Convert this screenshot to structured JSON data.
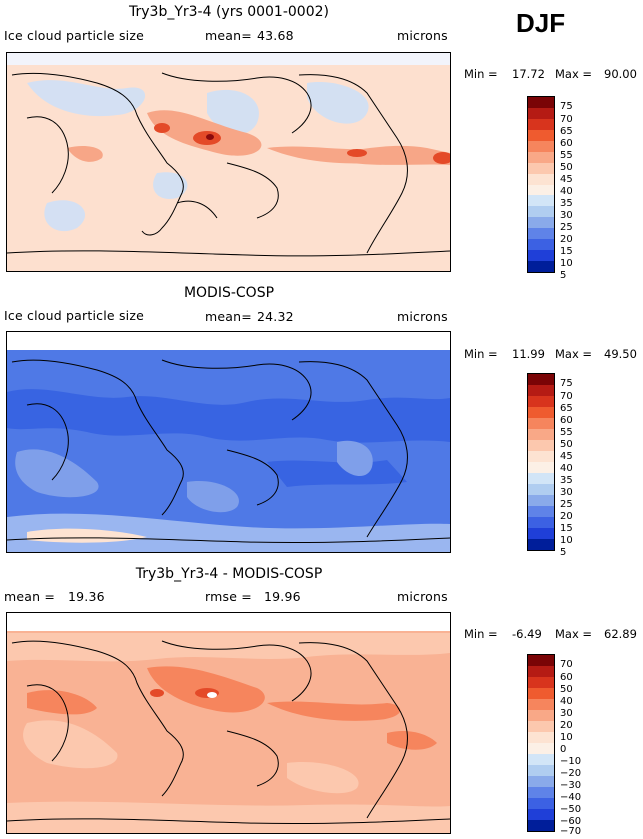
{
  "season": "DJF",
  "panels": [
    {
      "title": "Try3b_Yr3-4 (yrs 0001-0002)",
      "left_label": "Ice cloud particle size",
      "mean_label": "mean=",
      "mean_value": "43.68",
      "units": "microns",
      "min_label": "Min =",
      "min_value": "17.72",
      "max_label": "Max =",
      "max_value": "90.00",
      "colorbar_levels": [
        "75",
        "70",
        "65",
        "60",
        "55",
        "50",
        "45",
        "40",
        "35",
        "30",
        "25",
        "20",
        "15",
        "10",
        "5"
      ],
      "colorbar_colors": [
        "#7a0406",
        "#b51b14",
        "#d8341d",
        "#ef5b2f",
        "#f6855d",
        "#f9a887",
        "#fcc8ae",
        "#fde3d2",
        "#fcf0e6",
        "#d2e5f7",
        "#b0cdf0",
        "#8aaaea",
        "#5f83e8",
        "#3c61e3",
        "#1f3fd8",
        "#001e9a"
      ]
    },
    {
      "title": "MODIS-COSP",
      "left_label": "Ice cloud particle size",
      "mean_label": "mean=",
      "mean_value": "24.32",
      "units": "microns",
      "min_label": "Min =",
      "min_value": "11.99",
      "max_label": "Max =",
      "max_value": "49.50",
      "colorbar_levels": [
        "75",
        "70",
        "65",
        "60",
        "55",
        "50",
        "45",
        "40",
        "35",
        "30",
        "25",
        "20",
        "15",
        "10",
        "5"
      ],
      "colorbar_colors": [
        "#7a0406",
        "#b51b14",
        "#d8341d",
        "#ef5b2f",
        "#f6855d",
        "#f9a887",
        "#fcc8ae",
        "#fde3d2",
        "#fcf0e6",
        "#d2e5f7",
        "#b0cdf0",
        "#8aaaea",
        "#5f83e8",
        "#3c61e3",
        "#1f3fd8",
        "#001e9a"
      ]
    },
    {
      "title": "Try3b_Yr3-4 - MODIS-COSP",
      "left_label": "mean =",
      "mean_label": "",
      "mean_value": "19.36",
      "mid_label": "rmse =",
      "mid_value": "19.96",
      "units": "microns",
      "min_label": "Min =",
      "min_value": "-6.49",
      "max_label": "Max =",
      "max_value": "62.89",
      "colorbar_levels": [
        "70",
        "60",
        "50",
        "40",
        "30",
        "20",
        "10",
        "0",
        "−10",
        "−20",
        "−30",
        "−40",
        "−50",
        "−60",
        "−70"
      ],
      "colorbar_colors": [
        "#7a0406",
        "#b51b14",
        "#d8341d",
        "#ef5b2f",
        "#f6855d",
        "#f9a887",
        "#fcc8ae",
        "#fde3d2",
        "#fcf0e6",
        "#d2e5f7",
        "#b0cdf0",
        "#8aaaea",
        "#5f83e8",
        "#3c61e3",
        "#1f3fd8",
        "#001e9a"
      ]
    }
  ]
}
